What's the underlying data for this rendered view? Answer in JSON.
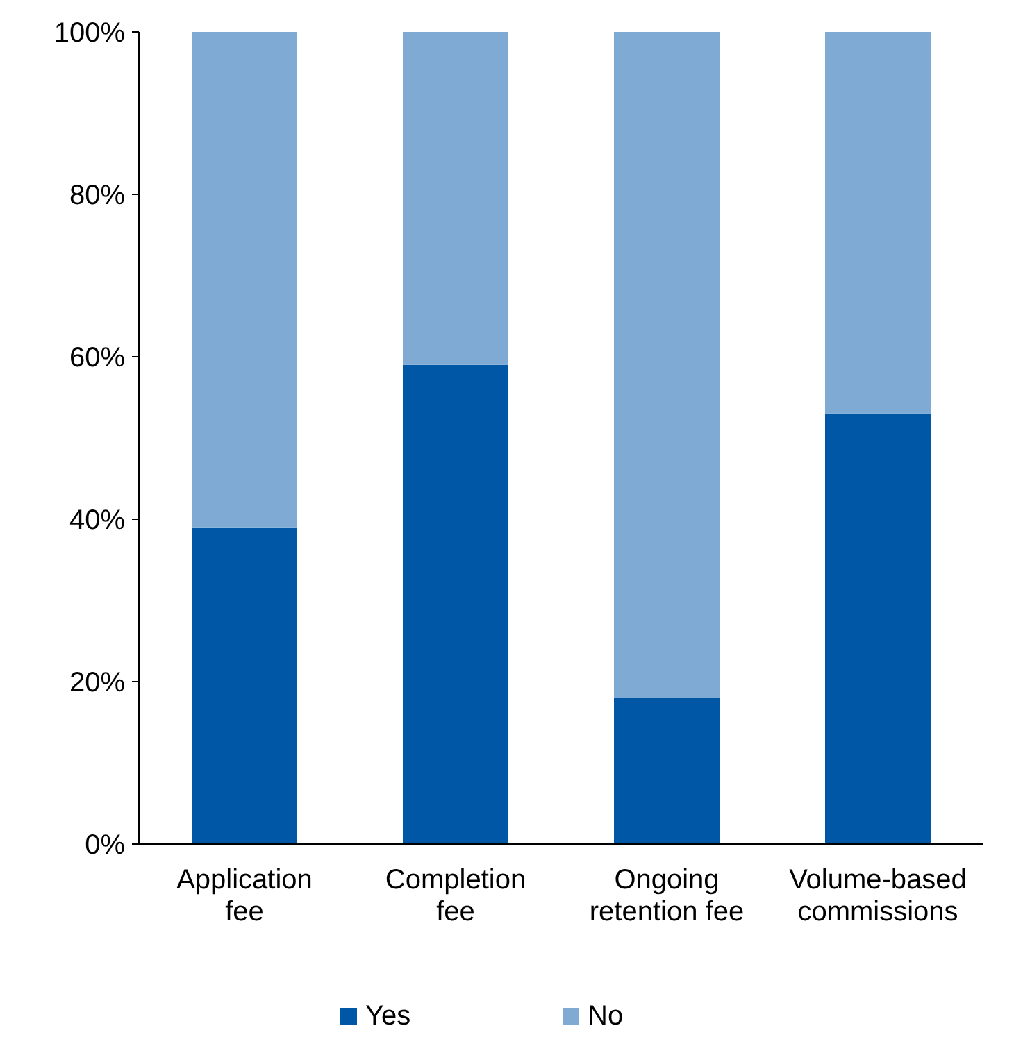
{
  "chart_data": {
    "type": "bar",
    "stacked": true,
    "categories": [
      "Application fee",
      "Completion fee",
      "Ongoing retention fee",
      "Volume-based commissions"
    ],
    "series": [
      {
        "name": "Yes",
        "color": "#0057a6",
        "values": [
          39,
          59,
          18,
          53
        ]
      },
      {
        "name": "No",
        "color": "#7eaad4",
        "values": [
          61,
          41,
          82,
          47
        ]
      }
    ],
    "ylim": [
      0,
      100
    ],
    "yticks": [
      {
        "value": 0,
        "label": "0%"
      },
      {
        "value": 20,
        "label": "20%"
      },
      {
        "value": 40,
        "label": "40%"
      },
      {
        "value": 60,
        "label": "60%"
      },
      {
        "value": 80,
        "label": "80%"
      },
      {
        "value": 100,
        "label": "100%"
      }
    ],
    "grid": false,
    "legend": "bottom"
  }
}
